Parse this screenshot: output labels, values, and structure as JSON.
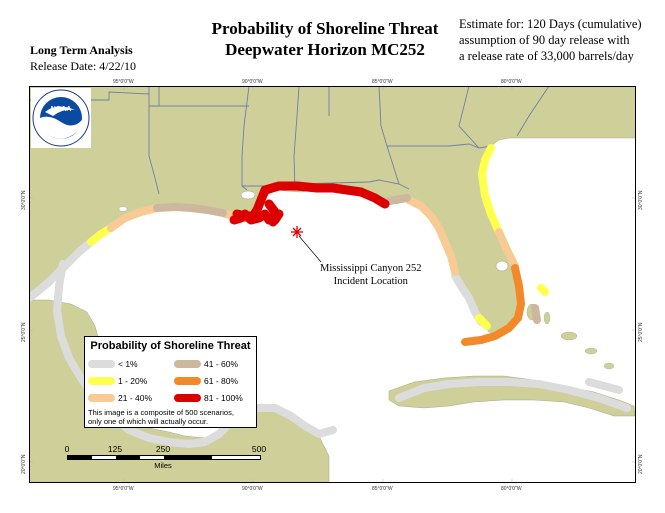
{
  "header": {
    "analysis_type": "Long Term Analysis",
    "release_date": "Release Date:  4/22/10",
    "title_line1": "Probability of Shoreline Threat",
    "title_line2": "Deepwater Horizon MC252",
    "estimate_line1": "Estimate for: 120 Days (cumulative)",
    "estimate_line2": "assumption of 90 day release with",
    "estimate_line3": "a release rate of 33,000 barrels/day"
  },
  "map": {
    "logo_text": "NOAA",
    "incident_label_line1": "Mississippi Canyon 252",
    "incident_label_line2": "Incident Location",
    "top_ticks": [
      "95°0'0\"W",
      "90°0'0\"W",
      "85°0'0\"W",
      "80°0'0\"W"
    ],
    "bottom_ticks": [
      "95°0'0\"W",
      "90°0'0\"W",
      "85°0'0\"W",
      "80°0'0\"W"
    ],
    "left_ticks": [
      "30°0'0\"N",
      "25°0'0\"N",
      "20°0'0\"N"
    ],
    "right_ticks": [
      "30°0'0\"N",
      "25°0'0\"N",
      "20°0'0\"N"
    ],
    "colors": {
      "water": "#ffffff",
      "land": "#cfcf99",
      "state_border": "#6f7fa8",
      "p_lt1": "#dcdcdc",
      "p_1_20": "#ffff4d",
      "p_21_40": "#f8cb95",
      "p_41_60": "#cdb79e",
      "p_61_80": "#f28a2a",
      "p_81_100": "#dd0000"
    }
  },
  "legend": {
    "title": "Probability of Shoreline Threat",
    "items": [
      {
        "label": "< 1%",
        "color": "#dcdcdc"
      },
      {
        "label": "41 - 60%",
        "color": "#cdb79e"
      },
      {
        "label": "1 - 20%",
        "color": "#ffff4d"
      },
      {
        "label": "61 - 80%",
        "color": "#f28a2a"
      },
      {
        "label": "21 - 40%",
        "color": "#f8cb95"
      },
      {
        "label": "81 - 100%",
        "color": "#dd0000"
      }
    ],
    "note_line1": "This image is a composite of 500 scenarios,",
    "note_line2": "only one of which will actually occur."
  },
  "scalebar": {
    "labels": [
      "0",
      "125",
      "250",
      "500"
    ],
    "units": "Miles"
  }
}
